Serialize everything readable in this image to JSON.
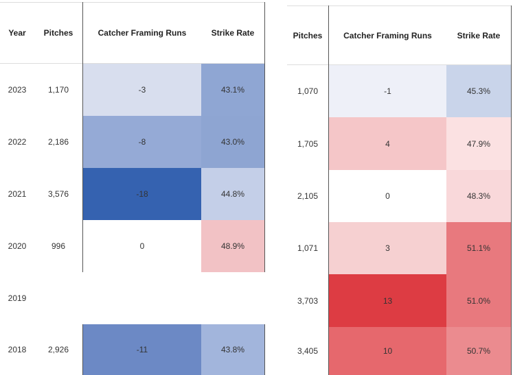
{
  "left_table": {
    "headers": [
      "Year",
      "Pitches",
      "Catcher Framing Runs",
      "Strike Rate"
    ],
    "rows": [
      {
        "year": "2023",
        "pitches": "1,170",
        "framing": "-3",
        "strike_rate": "43.1%",
        "framing_color": "#d8deee",
        "strike_color": "#8fa6d3"
      },
      {
        "year": "2022",
        "pitches": "2,186",
        "framing": "-8",
        "strike_rate": "43.0%",
        "framing_color": "#95aad6",
        "strike_color": "#8ea5d2"
      },
      {
        "year": "2021",
        "pitches": "3,576",
        "framing": "-18",
        "strike_rate": "44.8%",
        "framing_color": "#3562b0",
        "strike_color": "#c4cfe8"
      },
      {
        "year": "2020",
        "pitches": "996",
        "framing": "0",
        "strike_rate": "48.9%",
        "framing_color": "#ffffff",
        "strike_color": "#f2c2c5"
      },
      {
        "year": "2019"
      },
      {
        "year": "2018",
        "pitches": "2,926",
        "framing": "-11",
        "strike_rate": "43.8%",
        "framing_color": "#6c89c5",
        "strike_color": "#a2b5dc"
      }
    ]
  },
  "right_table": {
    "headers": [
      "Pitches",
      "Catcher Framing Runs",
      "Strike Rate"
    ],
    "rows": [
      {
        "pitches": "1,070",
        "framing": "-1",
        "strike_rate": "45.3%",
        "framing_color": "#eef0f8",
        "strike_color": "#c9d4ea"
      },
      {
        "pitches": "1,705",
        "framing": "4",
        "strike_rate": "47.9%",
        "framing_color": "#f5c6c8",
        "strike_color": "#fbe1e2"
      },
      {
        "pitches": "2,105",
        "framing": "0",
        "strike_rate": "48.3%",
        "framing_color": "#ffffff",
        "strike_color": "#f9d8da"
      },
      {
        "pitches": "1,071",
        "framing": "3",
        "strike_rate": "51.1%",
        "framing_color": "#f6d0d1",
        "strike_color": "#e8797e"
      },
      {
        "pitches": "3,703",
        "framing": "13",
        "strike_rate": "51.0%",
        "framing_color": "#dd3c43",
        "strike_color": "#e8797e"
      },
      {
        "pitches": "3,405",
        "framing": "10",
        "strike_rate": "50.7%",
        "framing_color": "#e6686d",
        "strike_color": "#eb8b8f"
      }
    ]
  }
}
